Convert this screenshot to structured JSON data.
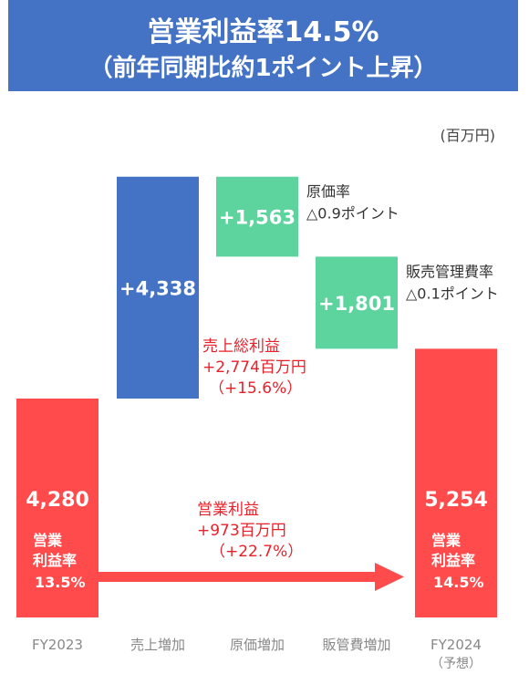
{
  "banner": {
    "title": "営業利益率14.5%",
    "subtitle": "（前年同期比約1ポイント上昇）"
  },
  "unit": "(百万円)",
  "colors": {
    "banner": "#4472C4",
    "total": "#FF4B4B",
    "sales": "#4472C4",
    "cost": "#5DD39E",
    "red_text": "#E8202A",
    "axis_text": "#888888"
  },
  "chart_data": {
    "type": "waterfall",
    "unit": "百万円",
    "categories": [
      "FY2023",
      "売上増加",
      "原価増加",
      "販管費増加",
      "FY2024"
    ],
    "sub_label": "（予想）",
    "bars": [
      {
        "category": "FY2023",
        "kind": "total",
        "value": 4280,
        "label": "4,280",
        "note": [
          "営業",
          "利益率",
          "13.5%"
        ]
      },
      {
        "category": "売上増加",
        "kind": "increase",
        "value": 4338,
        "label": "+4,338"
      },
      {
        "category": "原価増加",
        "kind": "decrease",
        "value": 1563,
        "label": "+1,563",
        "annotation": [
          "原価率",
          "△0.9ポイント"
        ]
      },
      {
        "category": "販管費増加",
        "kind": "decrease",
        "value": 1801,
        "label": "+1,801",
        "annotation": [
          "販売管理費率",
          "△0.1ポイント"
        ]
      },
      {
        "category": "FY2024",
        "kind": "total",
        "value": 5254,
        "label": "5,254",
        "note": [
          "営業",
          "利益率",
          "14.5%"
        ]
      }
    ],
    "callouts": {
      "gross_profit": [
        "売上総利益",
        "+2,774百万円",
        "（+15.6%）"
      ],
      "operating_profit": [
        "営業利益",
        "+973百万円",
        "（+22.7%）"
      ]
    }
  }
}
